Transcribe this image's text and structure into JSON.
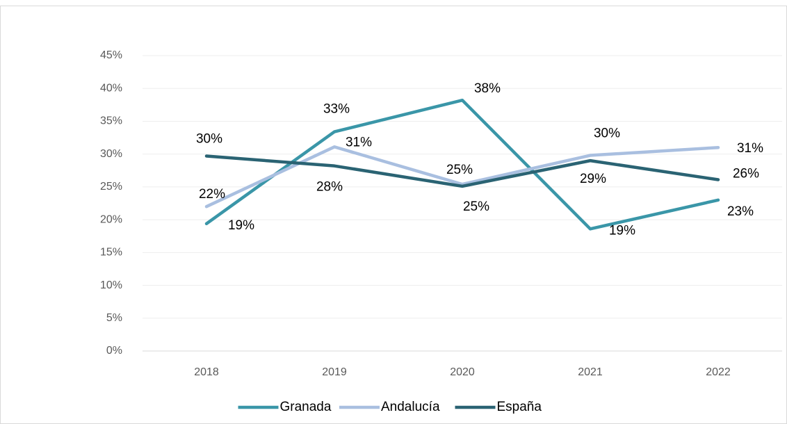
{
  "chart_data": {
    "type": "line",
    "categories": [
      "2018",
      "2019",
      "2020",
      "2021",
      "2022"
    ],
    "series": [
      {
        "name": "Granada",
        "color": "#3a96a8",
        "values": [
          19.4,
          33.4,
          38.2,
          18.6,
          23.0
        ],
        "value_labels": [
          "19%",
          "33%",
          "38%",
          "19%",
          "23%"
        ]
      },
      {
        "name": "Andalucía",
        "color": "#a9bfe0",
        "values": [
          22.0,
          31.1,
          25.4,
          29.8,
          31.0
        ],
        "value_labels": [
          "22%",
          "31%",
          "25%",
          "30%",
          "31%"
        ]
      },
      {
        "name": "España",
        "color": "#2a6373",
        "values": [
          29.7,
          28.2,
          25.1,
          29.0,
          26.1
        ],
        "value_labels": [
          "30%",
          "28%",
          "25%",
          "29%",
          "26%"
        ]
      }
    ],
    "ylim": [
      0,
      45
    ],
    "yticks": [
      {
        "value": 0,
        "label": "0%"
      },
      {
        "value": 5,
        "label": "5%"
      },
      {
        "value": 10,
        "label": "10%"
      },
      {
        "value": 15,
        "label": "15%"
      },
      {
        "value": 20,
        "label": "20%"
      },
      {
        "value": 25,
        "label": "25%"
      },
      {
        "value": 30,
        "label": "30%"
      },
      {
        "value": 35,
        "label": "35%"
      },
      {
        "value": 40,
        "label": "40%"
      },
      {
        "value": 45,
        "label": "45%"
      }
    ],
    "grid": true,
    "legend": "bottom"
  }
}
